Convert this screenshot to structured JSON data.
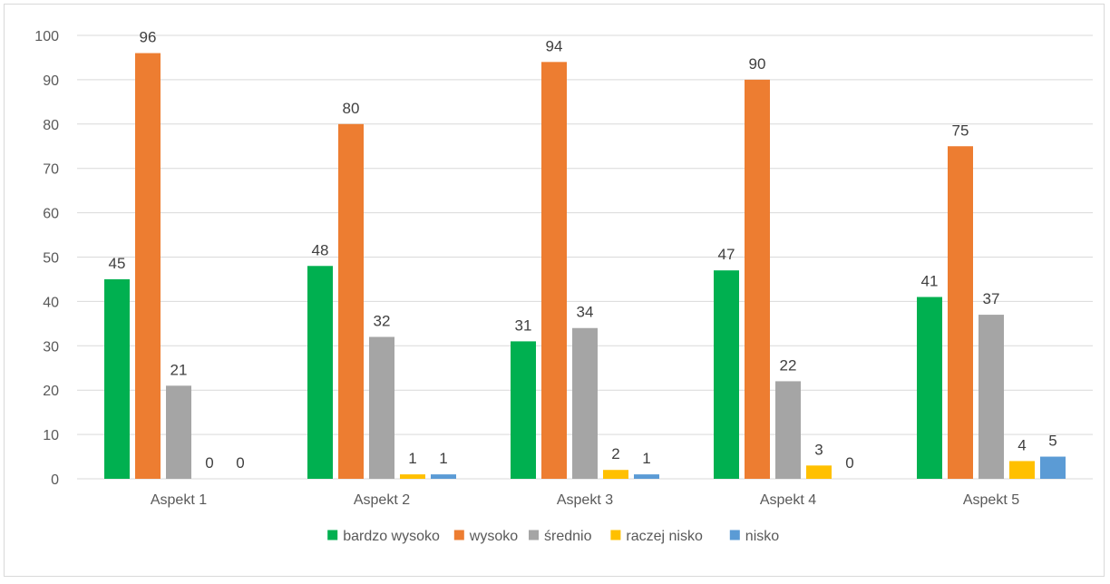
{
  "chart_data": {
    "type": "bar",
    "categories": [
      "Aspekt 1",
      "Aspekt 2",
      "Aspekt 3",
      "Aspekt 4",
      "Aspekt 5"
    ],
    "series": [
      {
        "name": "bardzo wysoko",
        "color": "#00b050",
        "values": [
          45,
          48,
          31,
          47,
          41
        ]
      },
      {
        "name": "wysoko",
        "color": "#ed7d31",
        "values": [
          96,
          80,
          94,
          90,
          75
        ]
      },
      {
        "name": "średnio",
        "color": "#a5a5a5",
        "values": [
          21,
          32,
          34,
          22,
          37
        ]
      },
      {
        "name": "raczej nisko",
        "color": "#ffc000",
        "values": [
          0,
          1,
          2,
          3,
          4
        ]
      },
      {
        "name": "nisko",
        "color": "#5b9bd5",
        "values": [
          0,
          1,
          1,
          0,
          5
        ]
      }
    ],
    "ylim": [
      0,
      100
    ],
    "yticks": [
      0,
      10,
      20,
      30,
      40,
      50,
      60,
      70,
      80,
      90,
      100
    ],
    "grid": true,
    "legend_position": "bottom",
    "data_labels": true,
    "gridline_color": "#d9d9d9",
    "axis_text_color": "#595959"
  }
}
